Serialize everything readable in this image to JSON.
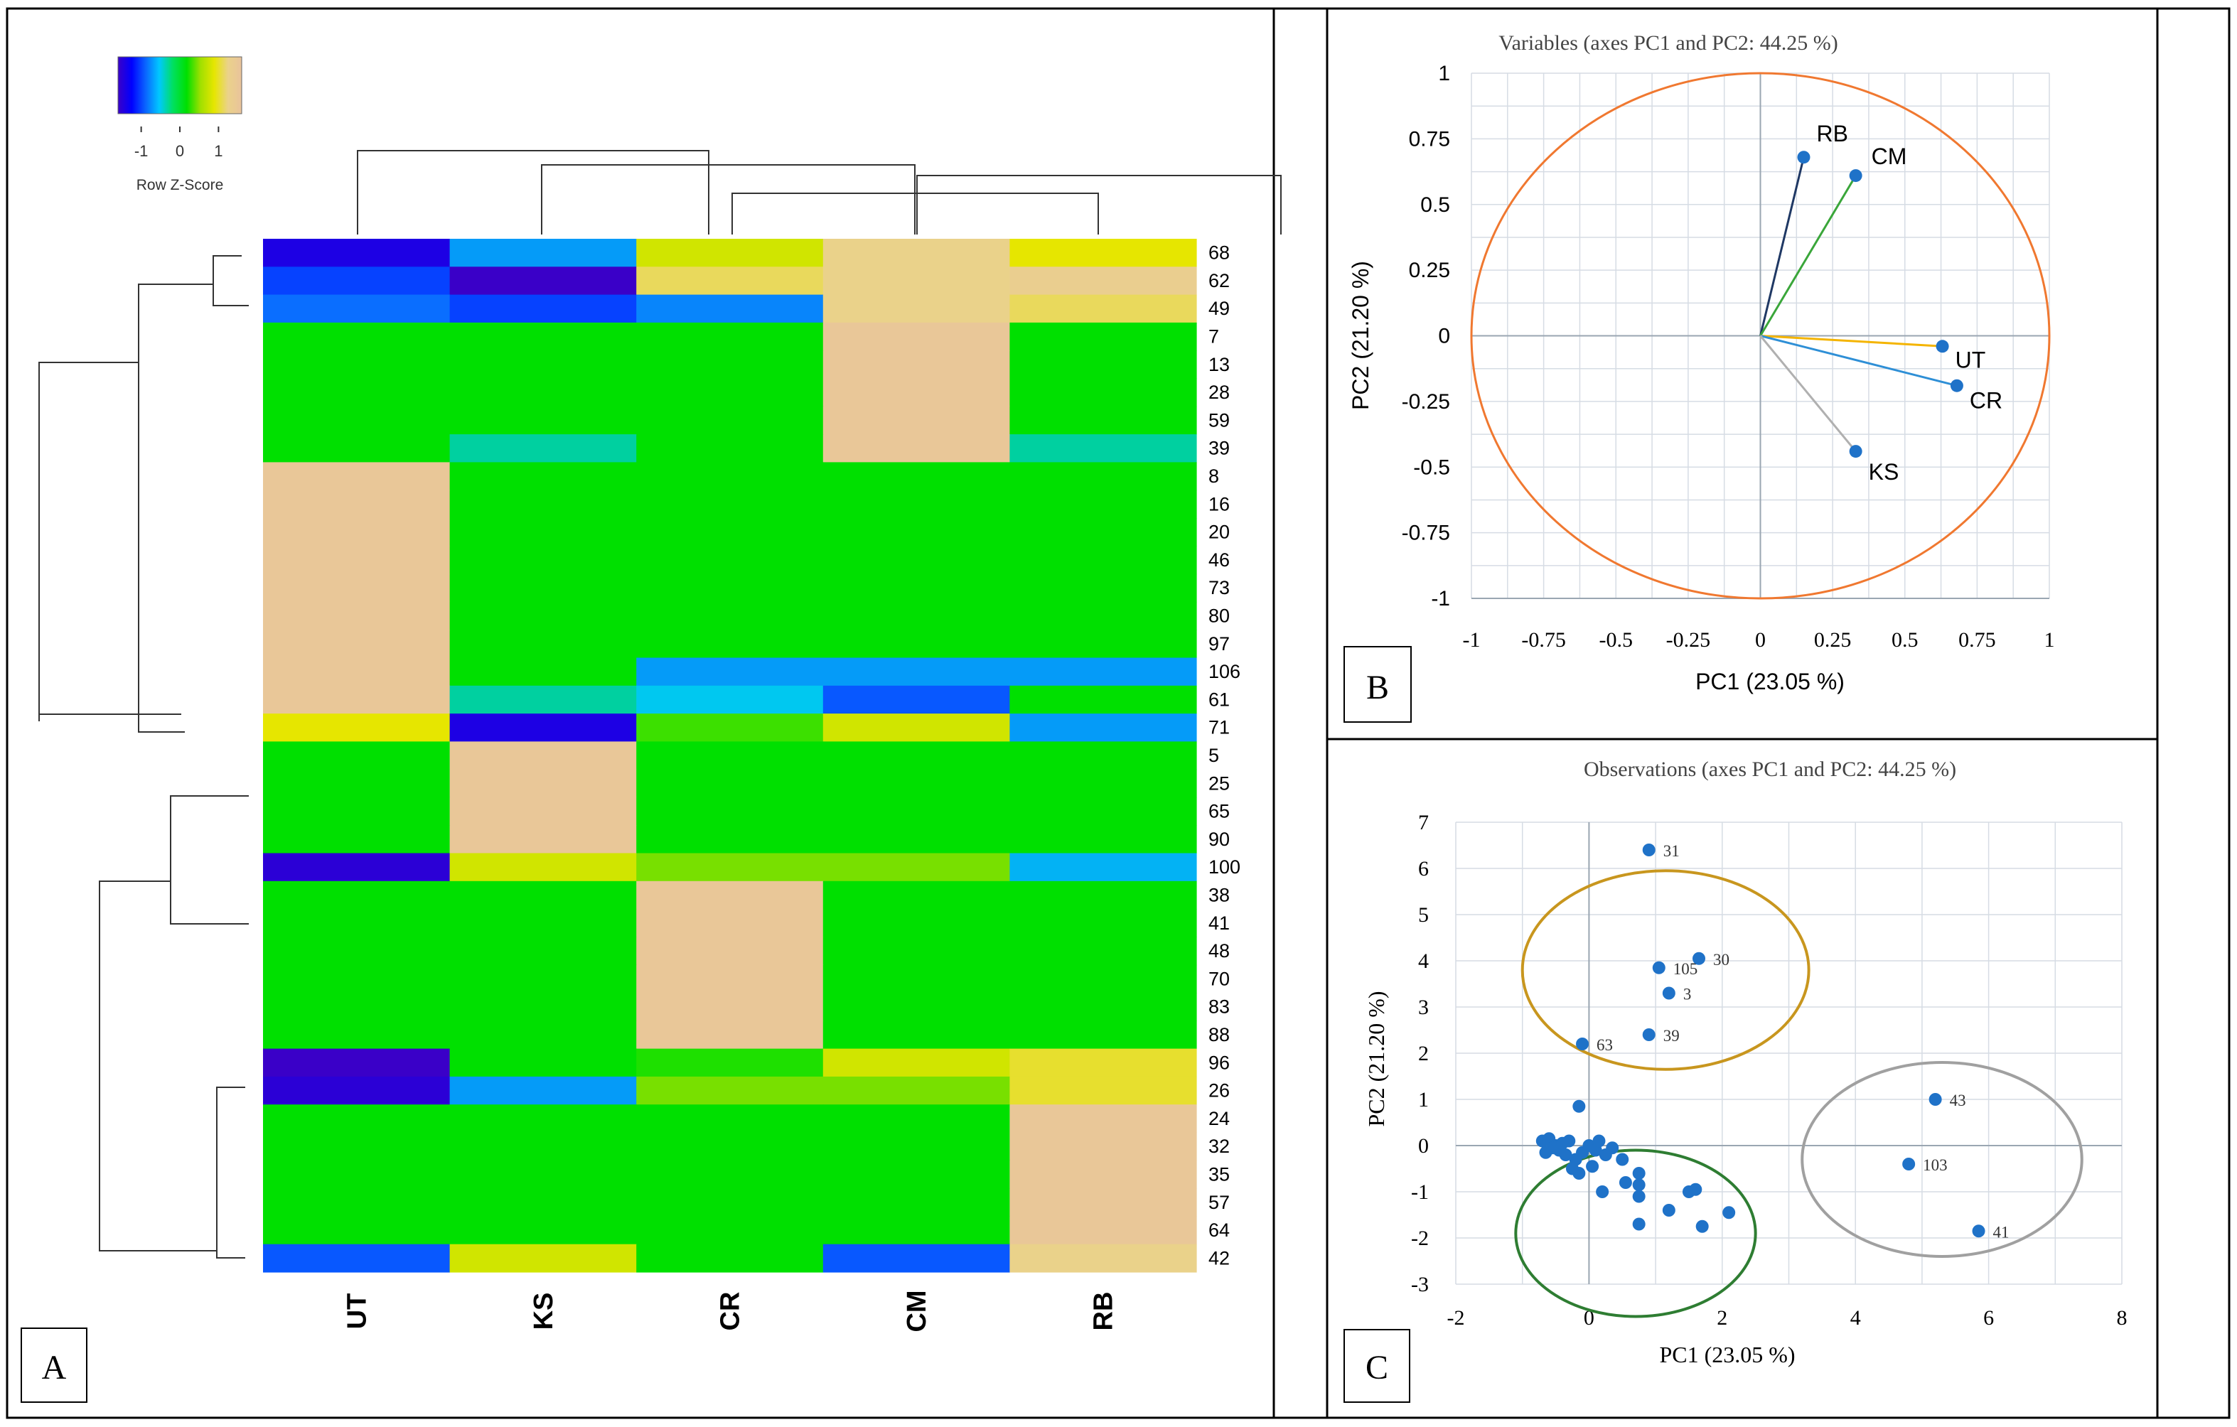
{
  "panel_labels": {
    "a": "A",
    "b": "B",
    "c": "C"
  },
  "heatmap": {
    "legend_title": "Row Z-Score",
    "legend_ticks": [
      "-1",
      "0",
      "1"
    ],
    "legend_colors": [
      "#3a00c8",
      "#0000ff",
      "#0a64ff",
      "#00c8ff",
      "#00e060",
      "#00e000",
      "#a0e000",
      "#e6e600",
      "#ead28a",
      "#e9c39c"
    ],
    "columns": [
      "UT",
      "KS",
      "CR",
      "CM",
      "RB"
    ],
    "row_labels": [
      "68",
      "62",
      "49",
      "7",
      "13",
      "28",
      "59",
      "39",
      "8",
      "16",
      "20",
      "46",
      "73",
      "80",
      "97",
      "106",
      "61",
      "71",
      "5",
      "25",
      "65",
      "90",
      "100",
      "38",
      "41",
      "48",
      "70",
      "83",
      "88",
      "96",
      "26",
      "24",
      "32",
      "35",
      "57",
      "64",
      "42"
    ]
  },
  "chart_data": [
    {
      "type": "heatmap",
      "columns": [
        "UT",
        "KS",
        "CR",
        "CM",
        "RB"
      ],
      "legend": {
        "title": "Row Z-Score",
        "ticks": [
          -1,
          0,
          1
        ]
      },
      "rows": [
        {
          "label": "68",
          "values": [
            -1.4,
            -0.5,
            0.8,
            1.2,
            0.9
          ]
        },
        {
          "label": "62",
          "values": [
            -0.9,
            -1.6,
            1.1,
            1.2,
            1.3
          ]
        },
        {
          "label": "49",
          "values": [
            -0.7,
            -0.9,
            -0.6,
            1.2,
            1.1
          ]
        },
        {
          "label": "7",
          "values": [
            0,
            0,
            0,
            1.5,
            0
          ]
        },
        {
          "label": "13",
          "values": [
            0,
            0,
            0,
            1.5,
            0
          ]
        },
        {
          "label": "28",
          "values": [
            0,
            0,
            0,
            1.5,
            0
          ]
        },
        {
          "label": "59",
          "values": [
            0,
            0,
            0,
            1.5,
            0
          ]
        },
        {
          "label": "39",
          "values": [
            0,
            -0.2,
            0,
            1.5,
            -0.2
          ]
        },
        {
          "label": "8",
          "values": [
            1.5,
            0,
            0,
            0,
            0
          ]
        },
        {
          "label": "16",
          "values": [
            1.5,
            0,
            0,
            0,
            0
          ]
        },
        {
          "label": "20",
          "values": [
            1.5,
            0,
            0,
            0,
            0
          ]
        },
        {
          "label": "46",
          "values": [
            1.5,
            0,
            0,
            0,
            0
          ]
        },
        {
          "label": "73",
          "values": [
            1.5,
            0,
            0,
            0,
            0
          ]
        },
        {
          "label": "80",
          "values": [
            1.5,
            0,
            0,
            0,
            0
          ]
        },
        {
          "label": "97",
          "values": [
            1.5,
            0,
            0,
            0,
            0
          ]
        },
        {
          "label": "106",
          "values": [
            1.5,
            0,
            -0.5,
            -0.5,
            -0.5
          ]
        },
        {
          "label": "61",
          "values": [
            1.5,
            -0.2,
            -0.3,
            -0.8,
            0
          ]
        },
        {
          "label": "71",
          "values": [
            0.9,
            -1.4,
            0.2,
            0.8,
            -0.5
          ]
        },
        {
          "label": "5",
          "values": [
            0,
            1.5,
            0,
            0,
            0
          ]
        },
        {
          "label": "25",
          "values": [
            0,
            1.5,
            0,
            0,
            0
          ]
        },
        {
          "label": "65",
          "values": [
            0,
            1.5,
            0,
            0,
            0
          ]
        },
        {
          "label": "90",
          "values": [
            0,
            1.5,
            0,
            0,
            0
          ]
        },
        {
          "label": "100",
          "values": [
            -1.5,
            0.8,
            0.4,
            0.4,
            -0.4
          ]
        },
        {
          "label": "38",
          "values": [
            0,
            0,
            1.5,
            0,
            0
          ]
        },
        {
          "label": "41",
          "values": [
            0,
            0,
            1.5,
            0,
            0
          ]
        },
        {
          "label": "48",
          "values": [
            0,
            0,
            1.5,
            0,
            0
          ]
        },
        {
          "label": "70",
          "values": [
            0,
            0,
            1.5,
            0,
            0
          ]
        },
        {
          "label": "83",
          "values": [
            0,
            0,
            1.5,
            0,
            0
          ]
        },
        {
          "label": "88",
          "values": [
            0,
            0,
            1.5,
            0,
            0
          ]
        },
        {
          "label": "96",
          "values": [
            -1.6,
            0,
            0.1,
            0.8,
            1.0
          ]
        },
        {
          "label": "26",
          "values": [
            -1.5,
            -0.5,
            0.4,
            0.4,
            1.0
          ]
        },
        {
          "label": "24",
          "values": [
            0,
            0,
            0,
            0,
            1.5
          ]
        },
        {
          "label": "32",
          "values": [
            0,
            0,
            0,
            0,
            1.5
          ]
        },
        {
          "label": "35",
          "values": [
            0,
            0,
            0,
            0,
            1.5
          ]
        },
        {
          "label": "57",
          "values": [
            0,
            0,
            0,
            0,
            1.5
          ]
        },
        {
          "label": "64",
          "values": [
            0,
            0,
            0,
            0,
            1.5
          ]
        },
        {
          "label": "42",
          "values": [
            -0.8,
            0.8,
            0,
            -0.8,
            1.2
          ]
        }
      ]
    },
    {
      "type": "scatter",
      "title": "Variables (axes PC1 and PC2: 44.25 %)",
      "xlabel": "PC1 (23.05 %)",
      "ylabel": "PC2 (21.20 %)",
      "xlim": [
        -1,
        1
      ],
      "ylim": [
        -1,
        1
      ],
      "xticks": [
        "-1",
        "-0.75",
        "-0.5",
        "-0.25",
        "0",
        "0.25",
        "0.5",
        "0.75",
        "1"
      ],
      "yticks": [
        "1",
        "0.75",
        "0.5",
        "0.25",
        "0",
        "-0.25",
        "-0.5",
        "-0.75",
        "-1"
      ],
      "grid": true,
      "circle_color": "#f07830",
      "points": [
        {
          "label": "RB",
          "x": 0.15,
          "y": 0.68,
          "color": "#1f3864"
        },
        {
          "label": "CM",
          "x": 0.33,
          "y": 0.61,
          "color": "#3aa63a"
        },
        {
          "label": "UT",
          "x": 0.63,
          "y": -0.04,
          "color": "#f4b400"
        },
        {
          "label": "CR",
          "x": 0.68,
          "y": -0.19,
          "color": "#2e8fd6"
        },
        {
          "label": "KS",
          "x": 0.33,
          "y": -0.44,
          "color": "#b0b0b0"
        }
      ]
    },
    {
      "type": "scatter",
      "title": "Observations (axes PC1 and PC2: 44.25 %)",
      "xlabel": "PC1 (23.05 %)",
      "ylabel": "PC2 (21.20 %)",
      "xlim": [
        -2,
        8
      ],
      "ylim": [
        -3,
        7
      ],
      "xticks": [
        "-2",
        "0",
        "2",
        "4",
        "6",
        "8"
      ],
      "yticks": [
        "7",
        "6",
        "5",
        "4",
        "3",
        "2",
        "1",
        "0",
        "-1",
        "-2",
        "-3"
      ],
      "grid": true,
      "point_color": "#1f72c8",
      "labeled_points": [
        {
          "label": "31",
          "x": 0.9,
          "y": 6.4
        },
        {
          "label": "105",
          "x": 1.05,
          "y": 3.85
        },
        {
          "label": "30",
          "x": 1.65,
          "y": 4.05
        },
        {
          "label": "3",
          "x": 1.2,
          "y": 3.3
        },
        {
          "label": "39",
          "x": 0.9,
          "y": 2.4
        },
        {
          "label": "63",
          "x": -0.1,
          "y": 2.2
        },
        {
          "label": "43",
          "x": 5.2,
          "y": 1.0
        },
        {
          "label": "103",
          "x": 4.8,
          "y": -0.4
        },
        {
          "label": "41",
          "x": 5.85,
          "y": -1.85
        }
      ],
      "unlabeled_points": [
        {
          "x": -0.15,
          "y": 0.85
        },
        {
          "x": -0.7,
          "y": 0.1
        },
        {
          "x": -0.6,
          "y": 0.15
        },
        {
          "x": -0.5,
          "y": 0.0
        },
        {
          "x": -0.45,
          "y": -0.1
        },
        {
          "x": -0.35,
          "y": -0.2
        },
        {
          "x": -0.55,
          "y": -0.05
        },
        {
          "x": -0.3,
          "y": 0.1
        },
        {
          "x": -0.2,
          "y": -0.3
        },
        {
          "x": -0.1,
          "y": -0.15
        },
        {
          "x": 0.0,
          "y": 0.0
        },
        {
          "x": 0.1,
          "y": -0.1
        },
        {
          "x": 0.15,
          "y": 0.1
        },
        {
          "x": -0.25,
          "y": -0.5
        },
        {
          "x": -0.15,
          "y": -0.6
        },
        {
          "x": 0.05,
          "y": -0.45
        },
        {
          "x": 0.25,
          "y": -0.2
        },
        {
          "x": 0.35,
          "y": -0.05
        },
        {
          "x": 0.5,
          "y": -0.3
        },
        {
          "x": 0.75,
          "y": -0.6
        },
        {
          "x": 0.2,
          "y": -1.0
        },
        {
          "x": 0.55,
          "y": -0.8
        },
        {
          "x": 0.75,
          "y": -0.85
        },
        {
          "x": 0.75,
          "y": -1.1
        },
        {
          "x": 1.2,
          "y": -1.4
        },
        {
          "x": 1.5,
          "y": -1.0
        },
        {
          "x": 1.6,
          "y": -0.95
        },
        {
          "x": 2.1,
          "y": -1.45
        },
        {
          "x": 0.75,
          "y": -1.7
        },
        {
          "x": 1.7,
          "y": -1.75
        },
        {
          "x": -0.65,
          "y": -0.15
        },
        {
          "x": -0.4,
          "y": 0.05
        }
      ],
      "groups": [
        {
          "color": "#c8961e",
          "cx": 1.15,
          "cy": 3.8,
          "r": 2.15
        },
        {
          "color": "#2e7d32",
          "cx": 0.7,
          "cy": -1.9,
          "r": 1.8
        },
        {
          "color": "#a0a0a0",
          "cx": 5.3,
          "cy": -0.3,
          "r": 2.1
        }
      ]
    }
  ]
}
